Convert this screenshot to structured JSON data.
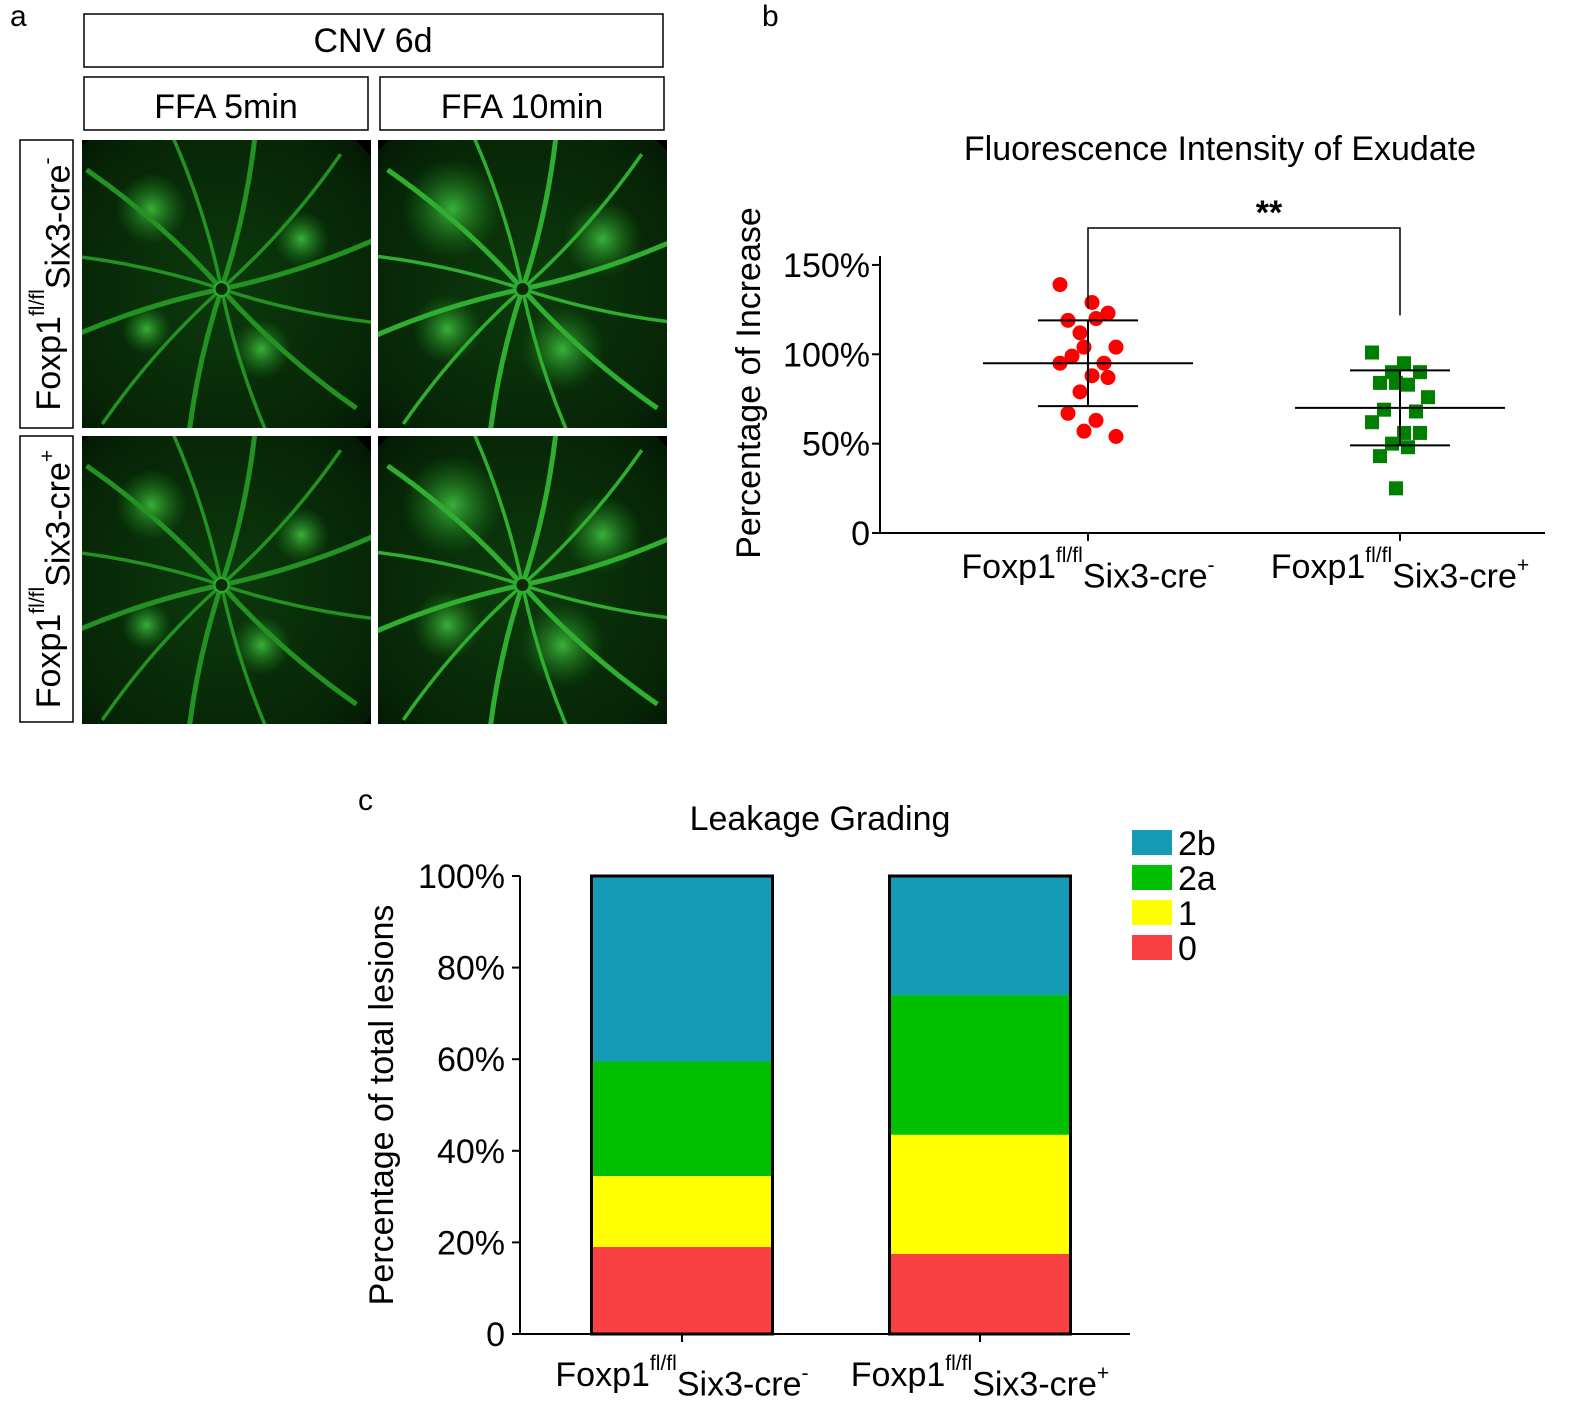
{
  "panel_a": {
    "label": "a",
    "header": "CNV 6d",
    "columns": [
      "FFA 5min",
      "FFA 10min"
    ],
    "rows": [
      [
        "Foxp1",
        "fl/fl",
        "Six3-cre",
        "-"
      ],
      [
        "Foxp1",
        "fl/fl",
        "Six3-cre",
        "+"
      ]
    ]
  },
  "chart_data": [
    {
      "type": "scatter",
      "panel_label": "b",
      "title": "Fluorescence Intensity of Exudate",
      "y_label": "Percentage of Increase",
      "categories": [
        [
          "Foxp1",
          "fl/fl",
          "Six3-cre",
          "-"
        ],
        [
          "Foxp1",
          "fl/fl",
          "Six3-cre",
          "+"
        ]
      ],
      "series": [
        {
          "color": "#ff0000",
          "marker": "circle",
          "mean": 95,
          "sd": 24,
          "values": [
            139,
            129,
            123,
            112,
            120,
            119,
            104,
            104,
            99,
            95,
            95,
            88,
            87,
            79,
            63,
            67,
            57,
            54
          ]
        },
        {
          "color": "#008000",
          "marker": "square",
          "mean": 70,
          "sd": 21,
          "values": [
            101,
            95,
            90,
            90,
            83,
            84,
            84,
            76,
            69,
            68,
            62,
            56,
            56,
            50,
            48,
            43,
            25
          ]
        }
      ],
      "annotation": "**",
      "annotation_color": "#1010d0",
      "ylim": [
        0,
        155
      ],
      "yticks": [
        0,
        {
          "value": 50,
          "label": "50%"
        },
        {
          "value": 100,
          "label": "100%"
        },
        {
          "value": 150,
          "label": "150%"
        }
      ]
    },
    {
      "type": "bar",
      "stacked": true,
      "panel_label": "c",
      "title": "Leakage Grading",
      "y_label": "Percentage of total lesions",
      "categories": [
        [
          "Foxp1",
          "fl/fl",
          "Six3-cre",
          "-"
        ],
        [
          "Foxp1",
          "fl/fl",
          "Six3-cre",
          "+"
        ]
      ],
      "series": [
        {
          "name": "0",
          "color": "#f94144",
          "values": [
            19,
            17.5
          ]
        },
        {
          "name": "1",
          "color": "#ffff00",
          "values": [
            15.5,
            26
          ]
        },
        {
          "name": "2a",
          "color": "#00c000",
          "values": [
            25,
            30.5
          ]
        },
        {
          "name": "2b",
          "color": "#149bb6",
          "values": [
            40.5,
            26
          ]
        }
      ],
      "ylim": [
        0,
        100
      ],
      "yticks": [
        0,
        {
          "value": 20,
          "label": "20%"
        },
        {
          "value": 40,
          "label": "40%"
        },
        {
          "value": 60,
          "label": "60%"
        },
        {
          "value": 80,
          "label": "80%"
        },
        {
          "value": 100,
          "label": "100%"
        }
      ],
      "legend": "top-right"
    }
  ]
}
